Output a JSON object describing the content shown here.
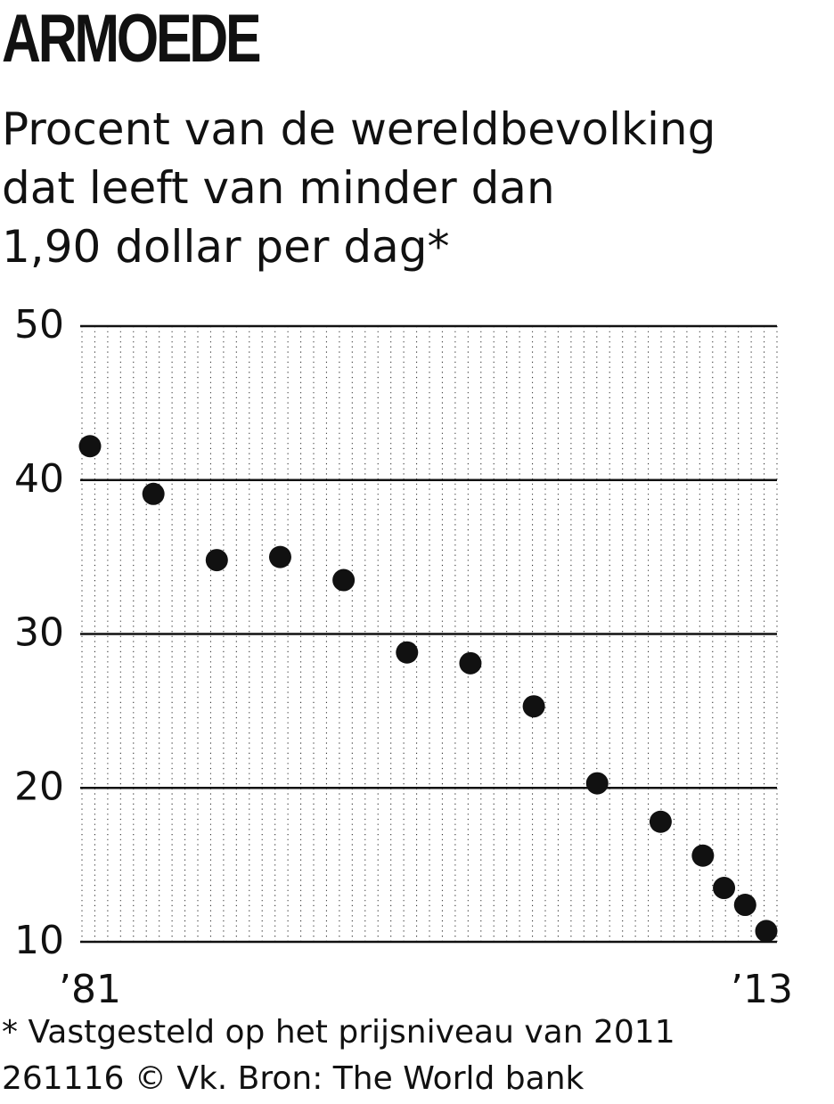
{
  "title": "ARMOEDE",
  "subtitle": {
    "line1": "Procent van de wereldbevolking",
    "line2": "dat leeft van minder dan",
    "line3": "1,90 dollar per dag*"
  },
  "chart_data": {
    "type": "scatter",
    "x": [
      1981,
      1984,
      1987,
      1990,
      1993,
      1996,
      1999,
      2002,
      2005,
      2008,
      2010,
      2011,
      2012,
      2013
    ],
    "y": [
      42.2,
      39.1,
      34.8,
      35.0,
      33.5,
      28.8,
      28.1,
      25.3,
      20.3,
      17.8,
      15.6,
      13.5,
      12.4,
      10.7
    ],
    "x_tick_labels": [
      "’81",
      "’13"
    ],
    "y_ticks": [
      10,
      20,
      30,
      40,
      50
    ],
    "ylim": [
      10,
      50
    ],
    "xlim": [
      1981,
      2013
    ],
    "grid": true,
    "color": "#111111"
  },
  "footnote": "* Vastgesteld op het prijsniveau van 2011",
  "credit": "261116 © Vk. Bron: The World bank"
}
